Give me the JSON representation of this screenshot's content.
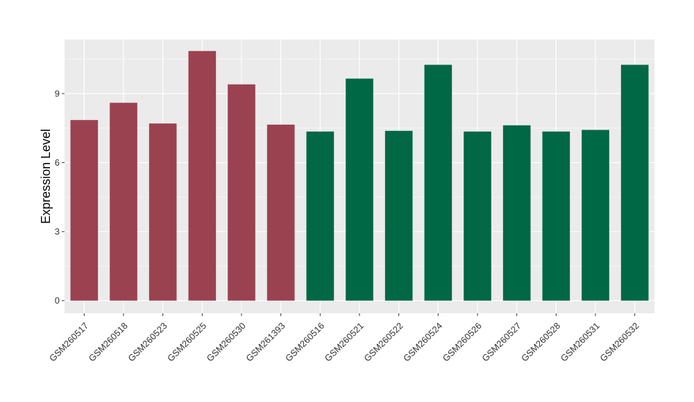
{
  "chart_data": {
    "type": "bar",
    "title": "",
    "xlabel": "",
    "ylabel": "Expression Level",
    "ylim": [
      -0.55,
      11.35
    ],
    "yticks": [
      0,
      3,
      6,
      9
    ],
    "grid": true,
    "legend": "none",
    "categories": [
      "GSM260517",
      "GSM260518",
      "GSM260523",
      "GSM260525",
      "GSM260530",
      "GSM261393",
      "GSM260516",
      "GSM260521",
      "GSM260522",
      "GSM260524",
      "GSM260526",
      "GSM260527",
      "GSM260528",
      "GSM260531",
      "GSM260532"
    ],
    "values": [
      7.85,
      8.6,
      7.7,
      10.85,
      9.4,
      7.65,
      7.35,
      9.65,
      7.38,
      10.25,
      7.35,
      7.62,
      7.35,
      7.42,
      10.25
    ],
    "groups": [
      0,
      0,
      0,
      0,
      0,
      0,
      1,
      1,
      1,
      1,
      1,
      1,
      1,
      1,
      1
    ],
    "group_colors": [
      "#9b4250",
      "#006845"
    ],
    "panel_color": "#ebebeb",
    "grid_color": "#ffffff"
  }
}
